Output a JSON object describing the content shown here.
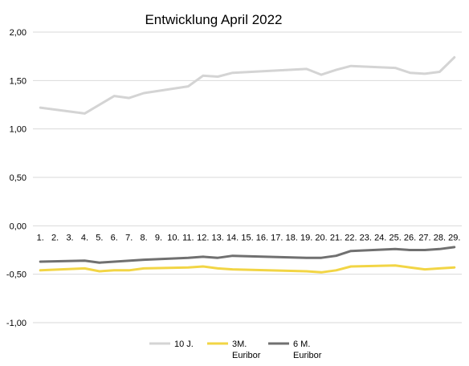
{
  "chart_data": {
    "type": "line",
    "title": "Entwicklung April 2022",
    "xlabel": "",
    "ylabel": "",
    "ylim": [
      -1.0,
      2.0
    ],
    "yticks": [
      "2,00",
      "1,50",
      "1,00",
      "0,50",
      "0,00",
      "-0,50",
      "-1,00"
    ],
    "categories": [
      "1.",
      "2.",
      "3.",
      "4.",
      "5.",
      "6.",
      "7.",
      "8.",
      "9.",
      "10.",
      "11.",
      "12.",
      "13.",
      "14.",
      "15.",
      "16.",
      "17.",
      "18.",
      "19.",
      "20.",
      "21.",
      "22.",
      "23.",
      "24.",
      "25.",
      "26.",
      "27.",
      "28.",
      "29."
    ],
    "grid": "horizontal",
    "legend_position": "bottom",
    "series": [
      {
        "name": "10 J.",
        "color": "#d4d4d4",
        "points": [
          [
            1,
            1.22
          ],
          [
            4,
            1.16
          ],
          [
            6,
            1.34
          ],
          [
            7,
            1.32
          ],
          [
            8,
            1.37
          ],
          [
            11,
            1.44
          ],
          [
            12,
            1.55
          ],
          [
            13,
            1.54
          ],
          [
            14,
            1.58
          ],
          [
            19,
            1.62
          ],
          [
            20,
            1.56
          ],
          [
            21,
            1.61
          ],
          [
            22,
            1.65
          ],
          [
            25,
            1.63
          ],
          [
            26,
            1.58
          ],
          [
            27,
            1.57
          ],
          [
            28,
            1.59
          ],
          [
            29,
            1.74
          ]
        ]
      },
      {
        "name": "3M. Euribor",
        "color": "#f2d545",
        "points": [
          [
            1,
            -0.46
          ],
          [
            4,
            -0.44
          ],
          [
            5,
            -0.47
          ],
          [
            6,
            -0.46
          ],
          [
            7,
            -0.46
          ],
          [
            8,
            -0.44
          ],
          [
            11,
            -0.43
          ],
          [
            12,
            -0.42
          ],
          [
            13,
            -0.44
          ],
          [
            14,
            -0.45
          ],
          [
            19,
            -0.47
          ],
          [
            20,
            -0.48
          ],
          [
            21,
            -0.46
          ],
          [
            22,
            -0.42
          ],
          [
            25,
            -0.41
          ],
          [
            26,
            -0.43
          ],
          [
            27,
            -0.45
          ],
          [
            28,
            -0.44
          ],
          [
            29,
            -0.43
          ]
        ]
      },
      {
        "name": "6 M. Euribor",
        "color": "#707070",
        "points": [
          [
            1,
            -0.37
          ],
          [
            4,
            -0.36
          ],
          [
            5,
            -0.38
          ],
          [
            8,
            -0.35
          ],
          [
            11,
            -0.33
          ],
          [
            12,
            -0.32
          ],
          [
            13,
            -0.33
          ],
          [
            14,
            -0.31
          ],
          [
            19,
            -0.33
          ],
          [
            20,
            -0.33
          ],
          [
            21,
            -0.31
          ],
          [
            22,
            -0.26
          ],
          [
            25,
            -0.24
          ],
          [
            26,
            -0.25
          ],
          [
            27,
            -0.25
          ],
          [
            28,
            -0.24
          ],
          [
            29,
            -0.22
          ]
        ]
      }
    ],
    "legend": [
      {
        "line1": "10 J.",
        "line2": ""
      },
      {
        "line1": "3M.",
        "line2": "Euribor"
      },
      {
        "line1": "6 M.",
        "line2": "Euribor"
      }
    ]
  }
}
